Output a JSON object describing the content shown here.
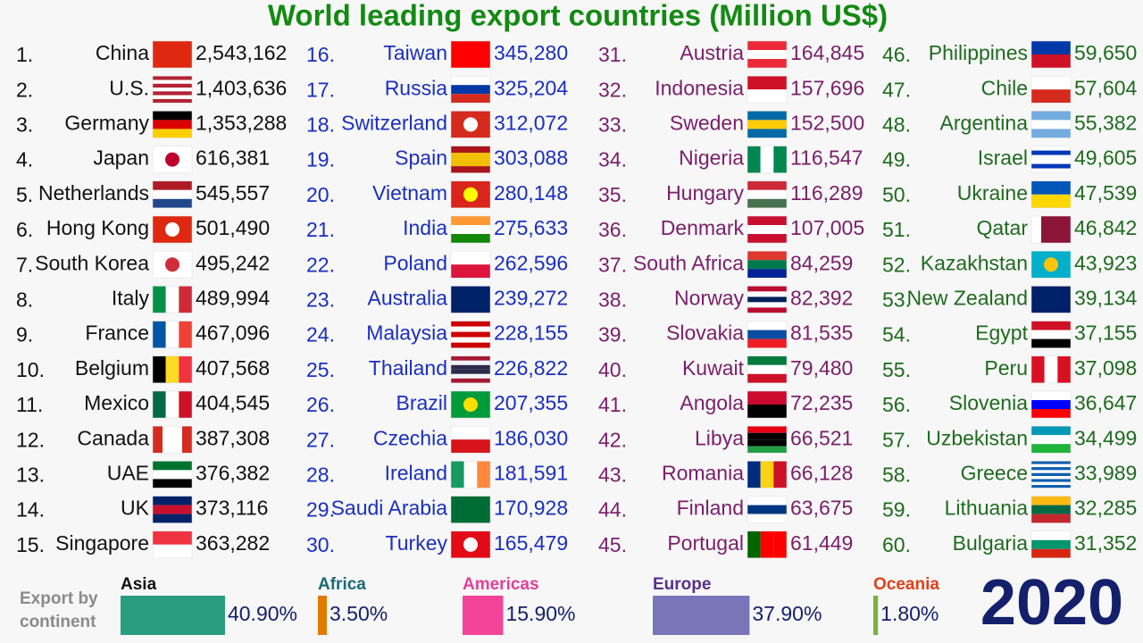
{
  "title": "World leading export countries (Million US$)",
  "columns": [
    {
      "rows": [
        {
          "rank": "1.",
          "country": "China",
          "value": "2,543,162"
        },
        {
          "rank": "2.",
          "country": "U.S.",
          "value": "1,403,636"
        },
        {
          "rank": "3.",
          "country": "Germany",
          "value": "1,353,288"
        },
        {
          "rank": "4.",
          "country": "Japan",
          "value": "616,381"
        },
        {
          "rank": "5.",
          "country": "Netherlands",
          "value": "545,557"
        },
        {
          "rank": "6.",
          "country": "Hong Kong",
          "value": "501,490"
        },
        {
          "rank": "7.",
          "country": "South Korea",
          "value": "495,242"
        },
        {
          "rank": "8.",
          "country": "Italy",
          "value": "489,994"
        },
        {
          "rank": "9.",
          "country": "France",
          "value": "467,096"
        },
        {
          "rank": "10.",
          "country": "Belgium",
          "value": "407,568"
        },
        {
          "rank": "11.",
          "country": "Mexico",
          "value": "404,545"
        },
        {
          "rank": "12.",
          "country": "Canada",
          "value": "387,308"
        },
        {
          "rank": "13.",
          "country": "UAE",
          "value": "376,382"
        },
        {
          "rank": "14.",
          "country": "UK",
          "value": "373,116"
        },
        {
          "rank": "15.",
          "country": "Singapore",
          "value": "363,282"
        }
      ]
    },
    {
      "rows": [
        {
          "rank": "16.",
          "country": "Taiwan",
          "value": "345,280"
        },
        {
          "rank": "17.",
          "country": "Russia",
          "value": "325,204"
        },
        {
          "rank": "18.",
          "country": "Switzerland",
          "value": "312,072"
        },
        {
          "rank": "19.",
          "country": "Spain",
          "value": "303,088"
        },
        {
          "rank": "20.",
          "country": "Vietnam",
          "value": "280,148"
        },
        {
          "rank": "21.",
          "country": "India",
          "value": "275,633"
        },
        {
          "rank": "22.",
          "country": "Poland",
          "value": "262,596"
        },
        {
          "rank": "23.",
          "country": "Australia",
          "value": "239,272"
        },
        {
          "rank": "24.",
          "country": "Malaysia",
          "value": "228,155"
        },
        {
          "rank": "25.",
          "country": "Thailand",
          "value": "226,822"
        },
        {
          "rank": "26.",
          "country": "Brazil",
          "value": "207,355"
        },
        {
          "rank": "27.",
          "country": "Czechia",
          "value": "186,030"
        },
        {
          "rank": "28.",
          "country": "Ireland",
          "value": "181,591"
        },
        {
          "rank": "29.",
          "country": "Saudi Arabia",
          "value": "170,928"
        },
        {
          "rank": "30.",
          "country": "Turkey",
          "value": "165,479"
        }
      ]
    },
    {
      "rows": [
        {
          "rank": "31.",
          "country": "Austria",
          "value": "164,845"
        },
        {
          "rank": "32.",
          "country": "Indonesia",
          "value": "157,696"
        },
        {
          "rank": "33.",
          "country": "Sweden",
          "value": "152,500"
        },
        {
          "rank": "34.",
          "country": "Nigeria",
          "value": "116,547"
        },
        {
          "rank": "35.",
          "country": "Hungary",
          "value": "116,289"
        },
        {
          "rank": "36.",
          "country": "Denmark",
          "value": "107,005"
        },
        {
          "rank": "37.",
          "country": "South Africa",
          "value": "84,259"
        },
        {
          "rank": "38.",
          "country": "Norway",
          "value": "82,392"
        },
        {
          "rank": "39.",
          "country": "Slovakia",
          "value": "81,535"
        },
        {
          "rank": "40.",
          "country": "Kuwait",
          "value": "79,480"
        },
        {
          "rank": "41.",
          "country": "Angola",
          "value": "72,235"
        },
        {
          "rank": "42.",
          "country": "Libya",
          "value": "66,521"
        },
        {
          "rank": "43.",
          "country": "Romania",
          "value": "66,128"
        },
        {
          "rank": "44.",
          "country": "Finland",
          "value": "63,675"
        },
        {
          "rank": "45.",
          "country": "Portugal",
          "value": "61,449"
        }
      ]
    },
    {
      "rows": [
        {
          "rank": "46.",
          "country": "Philippines",
          "value": "59,650"
        },
        {
          "rank": "47.",
          "country": "Chile",
          "value": "57,604"
        },
        {
          "rank": "48.",
          "country": "Argentina",
          "value": "55,382"
        },
        {
          "rank": "49.",
          "country": "Israel",
          "value": "49,605"
        },
        {
          "rank": "50.",
          "country": "Ukraine",
          "value": "47,539"
        },
        {
          "rank": "51.",
          "country": "Qatar",
          "value": "46,842"
        },
        {
          "rank": "52.",
          "country": "Kazakhstan",
          "value": "43,923"
        },
        {
          "rank": "53.",
          "country": "New Zealand",
          "value": "39,134"
        },
        {
          "rank": "54.",
          "country": "Egypt",
          "value": "37,155"
        },
        {
          "rank": "55.",
          "country": "Peru",
          "value": "37,098"
        },
        {
          "rank": "56.",
          "country": "Slovenia",
          "value": "36,647"
        },
        {
          "rank": "57.",
          "country": "Uzbekistan",
          "value": "34,499"
        },
        {
          "rank": "58.",
          "country": "Greece",
          "value": "33,989"
        },
        {
          "rank": "59.",
          "country": "Lithuania",
          "value": "32,285"
        },
        {
          "rank": "60.",
          "country": "Bulgaria",
          "value": "31,352"
        }
      ]
    }
  ],
  "legend_label": [
    "Export by",
    "continent"
  ],
  "continents": [
    {
      "name": "Asia",
      "value": 40.9,
      "value_label": "40.90%",
      "color": "#2a9d80"
    },
    {
      "name": "Africa",
      "value": 3.5,
      "value_label": "3.50%",
      "color": "#e07b00"
    },
    {
      "name": "Americas",
      "value": 15.9,
      "value_label": "15.90%",
      "color": "#f4449a"
    },
    {
      "name": "Europe",
      "value": 37.9,
      "value_label": "37.90%",
      "color": "#7876b8"
    },
    {
      "name": "Oceania",
      "value": 1.8,
      "value_label": "1.80%",
      "color": "#7ab040"
    }
  ],
  "year": "2020"
}
